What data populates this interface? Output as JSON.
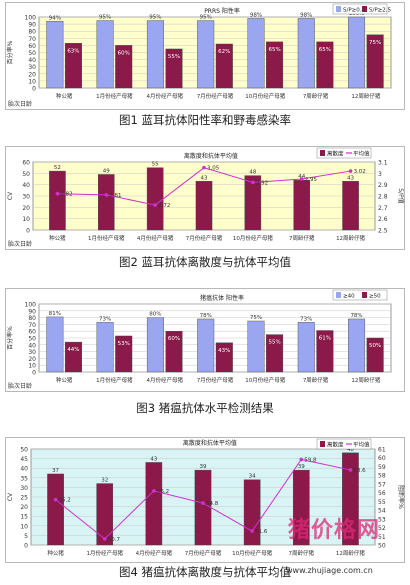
{
  "captions": [
    "图1 蓝耳抗体阳性率和野毒感染率",
    "图2 蓝耳抗体离散度与抗体平均值",
    "图3 猪瘟抗体水平检测结果",
    "图4 猪瘟抗体离散度与抗体平均值"
  ],
  "watermark": {
    "logo_text": "猪价格网",
    "url": "www.zhujiage.com.cn"
  },
  "chart_data": [
    {
      "type": "bar",
      "title": "PRRS 阳性率",
      "ylabel": "百分率%",
      "xlabel": "胎次日龄",
      "categories": [
        "种公猪",
        "1月份经产母猪",
        "4月份经产母猪",
        "7月份经产母猪",
        "10月份经产母猪",
        "7周龄仔猪",
        "12周龄仔猪"
      ],
      "series": [
        {
          "name": "S/P≥0.4",
          "values": [
            94,
            95,
            95,
            95,
            98,
            98,
            100
          ],
          "color": "#9aa6f0"
        },
        {
          "name": "S/P≥2.5",
          "values": [
            63,
            60,
            55,
            62,
            65,
            65,
            75
          ],
          "color": "#8b1a4a"
        }
      ],
      "ylim": [
        0,
        100
      ],
      "yticks": [
        0,
        10,
        20,
        30,
        40,
        50,
        60,
        70,
        80,
        90,
        100
      ],
      "background": "#ffffcc"
    },
    {
      "type": "bar",
      "title": "离散度和抗体平均值",
      "ylabel": "CV",
      "y2label": "S/P值",
      "xlabel": "胎次日龄",
      "categories": [
        "种公猪",
        "1月份经产母猪",
        "4月份经产母猪",
        "7月份经产母猪",
        "10月份经产母猪",
        "7周龄仔猪",
        "12周龄仔猪"
      ],
      "series": [
        {
          "name": "离散度",
          "values": [
            52,
            49,
            55,
            43,
            48,
            44,
            43
          ],
          "color": "#8b1a4a",
          "axis": "left"
        },
        {
          "name": "平均值",
          "values": [
            2.82,
            2.81,
            2.72,
            3.05,
            2.92,
            2.95,
            3.02
          ],
          "color": "#cc33cc",
          "axis": "right"
        }
      ],
      "ylim": [
        0,
        60
      ],
      "yticks": [
        0,
        10,
        20,
        30,
        40,
        50,
        60
      ],
      "y2lim": [
        2.5,
        3.1
      ],
      "y2ticks": [
        2.5,
        2.6,
        2.7,
        2.8,
        2.9,
        3,
        3.1
      ],
      "background": "#ffffcc"
    },
    {
      "type": "bar",
      "title": "猪瘟抗体 阳性率",
      "ylabel": "百分率%",
      "xlabel": "胎次日龄",
      "categories": [
        "种公猪",
        "1月份经产母猪",
        "4月份经产母猪",
        "7月份经产母猪",
        "10月份经产母猪",
        "7周龄仔猪",
        "12周龄仔猪"
      ],
      "series": [
        {
          "name": "≥40",
          "values": [
            81,
            73,
            80,
            78,
            75,
            73,
            78
          ],
          "color": "#9aa6f0"
        },
        {
          "name": "≥50",
          "values": [
            44,
            53,
            60,
            43,
            55,
            61,
            50
          ],
          "color": "#8b1a4a"
        }
      ],
      "ylim": [
        0,
        100
      ],
      "yticks": [
        0,
        10,
        20,
        30,
        40,
        50,
        60,
        70,
        80,
        90,
        100
      ],
      "background": "#ffffff"
    },
    {
      "type": "bar",
      "title": "离散度和抗体平均值",
      "ylabel": "CV",
      "y2label": "阻断率%",
      "xlabel": "",
      "categories": [
        "种公猪",
        "1月份经产母猪",
        "4月份经产母猪",
        "7月份经产母猪",
        "10月份经产母猪",
        "7周龄仔猪",
        "12周龄仔猪"
      ],
      "series": [
        {
          "name": "离散度",
          "values": [
            37,
            32,
            43,
            39,
            34,
            39,
            48
          ],
          "color": "#8b1a4a",
          "axis": "left"
        },
        {
          "name": "平均值",
          "values": [
            55.2,
            50.7,
            56.2,
            54.8,
            51.6,
            59.8,
            58.6
          ],
          "color": "#cc33cc",
          "axis": "right"
        }
      ],
      "ylim": [
        0,
        50
      ],
      "yticks": [
        0,
        5,
        10,
        15,
        20,
        25,
        30,
        35,
        40,
        45,
        50
      ],
      "y2lim": [
        50,
        61
      ],
      "y2ticks": [
        50,
        51,
        52,
        53,
        54,
        55,
        56,
        57,
        58,
        59,
        60,
        61
      ],
      "background": "#d8f4f4"
    }
  ]
}
